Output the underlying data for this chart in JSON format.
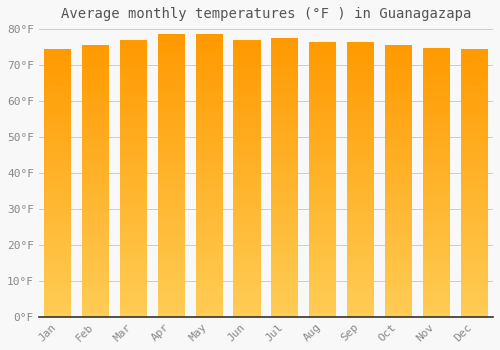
{
  "title": "Average monthly temperatures (°F ) in Guanagazapa",
  "months": [
    "Jan",
    "Feb",
    "Mar",
    "Apr",
    "May",
    "Jun",
    "Jul",
    "Aug",
    "Sep",
    "Oct",
    "Nov",
    "Dec"
  ],
  "values": [
    74.5,
    75.5,
    77.0,
    78.5,
    78.5,
    77.0,
    77.5,
    76.5,
    76.5,
    75.5,
    74.8,
    74.5
  ],
  "bar_color_center": "#FFD060",
  "bar_color_edge": "#FFA500",
  "bar_color_bottom": "#FFD060",
  "bar_color_top": "#FFA500",
  "ylim": [
    0,
    80
  ],
  "yticks": [
    0,
    10,
    20,
    30,
    40,
    50,
    60,
    70,
    80
  ],
  "ytick_labels": [
    "0°F",
    "10°F",
    "20°F",
    "30°F",
    "40°F",
    "50°F",
    "60°F",
    "70°F",
    "80°F"
  ],
  "background_color": "#F8F8F8",
  "grid_color": "#CCCCCC",
  "title_fontsize": 10,
  "tick_fontsize": 8,
  "bar_width": 0.72,
  "spine_color": "#333333"
}
